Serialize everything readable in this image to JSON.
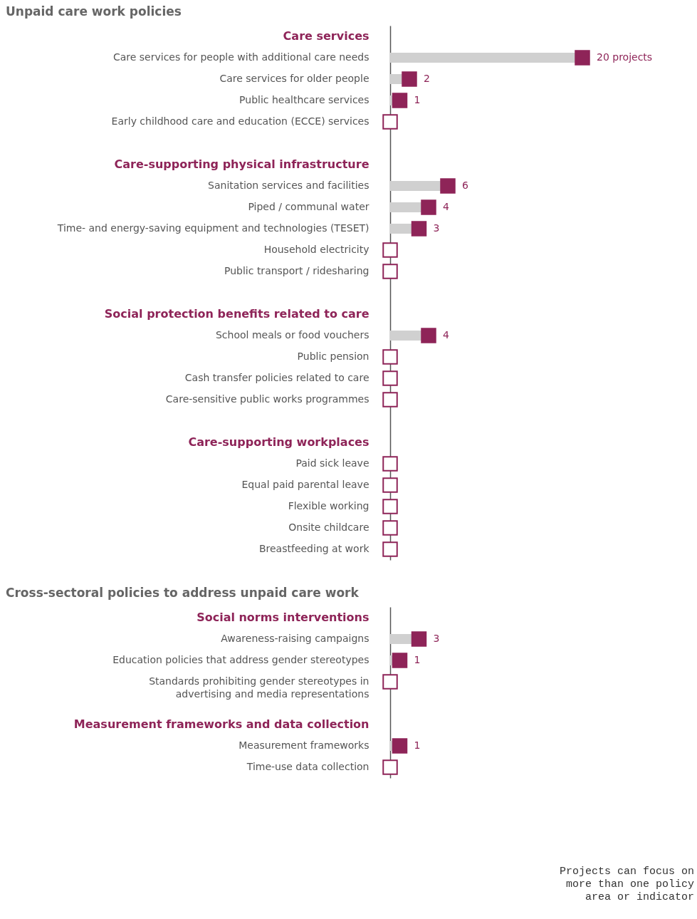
{
  "chart_data": [
    {
      "type": "lollipop",
      "orientation": "horizontal",
      "title": "Unpaid care work policies",
      "categories": [
        "Care services",
        "Care services for people with additional care needs",
        "Care services for older people",
        "Public healthcare services",
        "Early childhood care and education (ECCE) services",
        null,
        "Care-supporting physical infrastructure",
        "Sanitation services and facilities",
        "Piped / communal water",
        "Time- and energy-saving equipment and technologies (TESET)",
        "Household electricity",
        "Public transport / ridesharing",
        null,
        "Social protection benefits related to care",
        "School meals or food vouchers",
        "Public pension",
        "Cash transfer policies related to care",
        "Care-sensitive public works programmes",
        null,
        "Care-supporting workplaces",
        "Paid sick leave",
        "Equal paid parental leave",
        "Flexible working",
        "Onsite childcare",
        "Breastfeeding at work"
      ],
      "series": [
        {
          "color": "#8e2458",
          "values": [
            null,
            20,
            2,
            1,
            0,
            null,
            null,
            6,
            4,
            3,
            0,
            0,
            null,
            null,
            4,
            0,
            0,
            0,
            null,
            null,
            0,
            0,
            0,
            0,
            0
          ],
          "value_labels": [
            null,
            "20 projects",
            "2",
            "1",
            null,
            null,
            null,
            "6",
            "4",
            "3",
            null,
            null,
            null,
            null,
            "4",
            null,
            null,
            null,
            null,
            null,
            null,
            null,
            null,
            null,
            null
          ]
        }
      ]
    },
    {
      "type": "lollipop",
      "orientation": "horizontal",
      "title": "Cross-sectoral policies to address unpaid care work",
      "categories": [
        "Social norms interventions",
        "Awareness-raising campaigns",
        "Education policies that address gender stereotypes",
        "Standards prohibiting gender stereotypes in\nadvertising and media representations",
        null,
        "Measurement frameworks and data collection",
        "Measurement frameworks",
        "Time-use data collection"
      ],
      "series": [
        {
          "color": "#8e2458",
          "values": [
            null,
            3,
            1,
            0,
            null,
            null,
            1,
            0
          ],
          "value_labels": [
            null,
            "3",
            "1",
            null,
            null,
            null,
            "1",
            null
          ]
        }
      ],
      "annotations": [
        "Projects can focus on more than one policy area or indicator"
      ]
    }
  ]
}
